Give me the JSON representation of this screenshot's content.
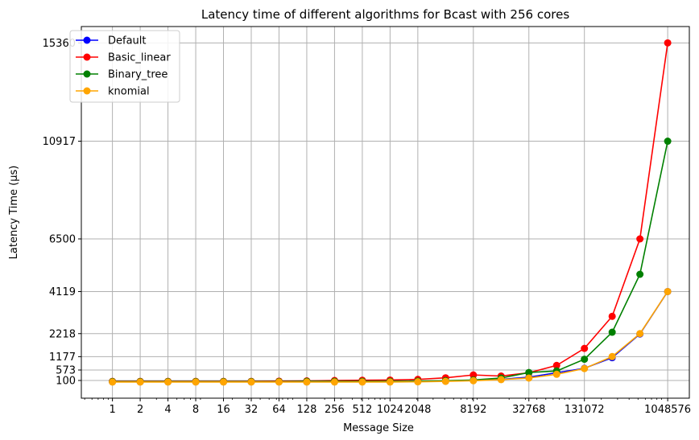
{
  "chart_data": {
    "type": "line",
    "title": "Latency time of different algorithms for Bcast with 256 cores",
    "xlabel": "Message Size",
    "ylabel": "Latency Time (µs)",
    "x_scale": "log2",
    "xlim": [
      0.46,
      1800000
    ],
    "ylim": [
      -700,
      16100
    ],
    "grid": true,
    "legend_position": "top-left",
    "x": [
      1,
      2,
      4,
      8,
      16,
      32,
      64,
      128,
      256,
      512,
      1024,
      2048,
      4096,
      8192,
      16384,
      32768,
      65536,
      131072,
      262144,
      524288,
      1048576
    ],
    "x_tick_labels": [
      "1",
      "2",
      "4",
      "8",
      "16",
      "32",
      "64",
      "128",
      "256",
      "512",
      "1024",
      "2048",
      "8192",
      "32768",
      "131072",
      "1048576"
    ],
    "x_tick_values": [
      1,
      2,
      4,
      8,
      16,
      32,
      64,
      128,
      256,
      512,
      1024,
      2048,
      8192,
      32768,
      131072,
      1048576
    ],
    "y_ticks": [
      100,
      573,
      1177,
      2218,
      4119,
      6500,
      10917,
      15360
    ],
    "series": [
      {
        "name": "Default",
        "color": "#0000ff",
        "values": [
          40,
          40,
          40,
          40,
          40,
          40,
          40,
          40,
          45,
          45,
          50,
          55,
          70,
          100,
          150,
          250,
          450,
          650,
          1130,
          2200,
          4119
        ]
      },
      {
        "name": "Basic_linear",
        "color": "#ff0000",
        "values": [
          60,
          60,
          60,
          60,
          60,
          60,
          70,
          80,
          100,
          110,
          120,
          150,
          220,
          350,
          300,
          450,
          780,
          1550,
          3000,
          6500,
          15360
        ]
      },
      {
        "name": "Binary_tree",
        "color": "#008000",
        "values": [
          50,
          50,
          50,
          50,
          50,
          50,
          50,
          60,
          60,
          60,
          60,
          70,
          90,
          120,
          210,
          460,
          530,
          1060,
          2280,
          4900,
          10917
        ]
      },
      {
        "name": "knomial",
        "color": "#ffa500",
        "values": [
          30,
          30,
          30,
          30,
          30,
          30,
          30,
          30,
          30,
          30,
          30,
          40,
          60,
          90,
          140,
          210,
          380,
          640,
          1180,
          2218,
          4119
        ]
      }
    ]
  }
}
